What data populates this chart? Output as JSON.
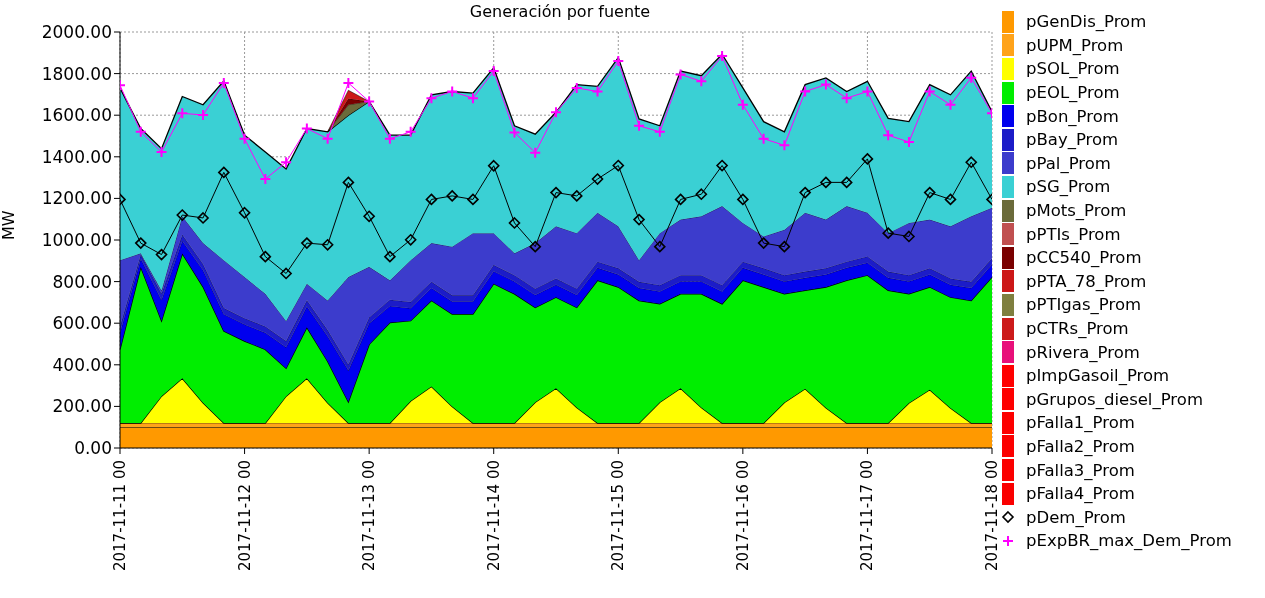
{
  "chart_data": {
    "type": "area",
    "title": "Generación por fuente",
    "ylabel": "MW",
    "stacked": true,
    "grid": true,
    "legend": "right",
    "x": [
      "2017-11-11T00:00",
      "2017-11-11T04:00",
      "2017-11-11T08:00",
      "2017-11-11T12:00",
      "2017-11-11T16:00",
      "2017-11-11T20:00",
      "2017-11-12T00:00",
      "2017-11-12T04:00",
      "2017-11-12T08:00",
      "2017-11-12T12:00",
      "2017-11-12T16:00",
      "2017-11-12T20:00",
      "2017-11-13T00:00",
      "2017-11-13T04:00",
      "2017-11-13T08:00",
      "2017-11-13T12:00",
      "2017-11-13T16:00",
      "2017-11-13T20:00",
      "2017-11-14T00:00",
      "2017-11-14T04:00",
      "2017-11-14T08:00",
      "2017-11-14T12:00",
      "2017-11-14T16:00",
      "2017-11-14T20:00",
      "2017-11-15T00:00",
      "2017-11-15T04:00",
      "2017-11-15T08:00",
      "2017-11-15T12:00",
      "2017-11-15T16:00",
      "2017-11-15T20:00",
      "2017-11-16T00:00",
      "2017-11-16T04:00",
      "2017-11-16T08:00",
      "2017-11-16T12:00",
      "2017-11-16T16:00",
      "2017-11-16T20:00",
      "2017-11-17T00:00",
      "2017-11-17T04:00",
      "2017-11-17T08:00",
      "2017-11-17T12:00",
      "2017-11-17T16:00",
      "2017-11-17T20:00",
      "2017-11-18T00:00"
    ],
    "xlim": [
      "2017-11-11T00:00",
      "2017-11-18T00:00"
    ],
    "xticks": [
      {
        "value": "2017-11-11T00:00",
        "label": "2017-11-11 00"
      },
      {
        "value": "2017-11-12T00:00",
        "label": "2017-11-12 00"
      },
      {
        "value": "2017-11-13T00:00",
        "label": "2017-11-13 00"
      },
      {
        "value": "2017-11-14T00:00",
        "label": "2017-11-14 00"
      },
      {
        "value": "2017-11-15T00:00",
        "label": "2017-11-15 00"
      },
      {
        "value": "2017-11-16T00:00",
        "label": "2017-11-16 00"
      },
      {
        "value": "2017-11-17T00:00",
        "label": "2017-11-17 00"
      },
      {
        "value": "2017-11-18T00:00",
        "label": "2017-11-18 00"
      }
    ],
    "ylim": [
      0,
      2000
    ],
    "yticks": [
      {
        "value": 0,
        "label": "0.00"
      },
      {
        "value": 200,
        "label": "200.00"
      },
      {
        "value": 400,
        "label": "400.00"
      },
      {
        "value": 600,
        "label": "600.00"
      },
      {
        "value": 800,
        "label": "800.00"
      },
      {
        "value": 1000,
        "label": "1000.00"
      },
      {
        "value": 1200,
        "label": "1200.00"
      },
      {
        "value": 1400,
        "label": "1400.00"
      },
      {
        "value": 1600,
        "label": "1600.00"
      },
      {
        "value": 1800,
        "label": "1800.00"
      },
      {
        "value": 2000,
        "label": "2000.00"
      }
    ],
    "series": [
      {
        "name": "pGenDis_Prom",
        "color": "#ff9900",
        "values": [
          100,
          100,
          100,
          100,
          100,
          100,
          100,
          100,
          100,
          100,
          100,
          100,
          100,
          100,
          100,
          100,
          100,
          100,
          100,
          100,
          100,
          100,
          100,
          100,
          100,
          100,
          100,
          100,
          100,
          100,
          100,
          100,
          100,
          100,
          100,
          100,
          100,
          100,
          100,
          100,
          100,
          100,
          100
        ]
      },
      {
        "name": "pUPM_Prom",
        "color": "#ffa31a",
        "values": [
          20,
          20,
          20,
          20,
          20,
          20,
          20,
          20,
          20,
          20,
          20,
          20,
          20,
          20,
          20,
          20,
          20,
          20,
          20,
          20,
          20,
          20,
          20,
          20,
          20,
          20,
          20,
          20,
          20,
          20,
          20,
          20,
          20,
          20,
          20,
          20,
          20,
          20,
          20,
          20,
          20,
          20,
          20
        ]
      },
      {
        "name": "pSOL_Prom",
        "color": "#ffff00",
        "values": [
          0,
          0,
          129,
          215,
          97,
          0,
          0,
          0,
          129,
          215,
          97,
          0,
          0,
          0,
          106,
          176,
          79,
          0,
          0,
          0,
          100,
          167,
          75,
          0,
          0,
          0,
          100,
          167,
          75,
          0,
          0,
          0,
          99,
          165,
          74,
          0,
          0,
          0,
          96,
          160,
          72,
          0,
          0
        ]
      },
      {
        "name": "pEOL_Prom",
        "color": "#00ee00",
        "values": [
          354,
          750,
          363,
          600,
          558,
          443,
          394,
          354,
          135,
          245,
          200,
          102,
          378,
          483,
          386,
          413,
          445,
          524,
          670,
          621,
          456,
          438,
          481,
          686,
          654,
          589,
          473,
          454,
          546,
          573,
          686,
          654,
          522,
          473,
          580,
          686,
          711,
          638,
          525,
          494,
          533,
          589,
          702
        ]
      },
      {
        "name": "pBon_Prom",
        "color": "#0000ee",
        "values": [
          80,
          40,
          100,
          60,
          80,
          80,
          80,
          80,
          100,
          100,
          120,
          150,
          100,
          80,
          60,
          60,
          60,
          60,
          60,
          60,
          60,
          60,
          60,
          60,
          60,
          60,
          60,
          60,
          60,
          60,
          60,
          60,
          60,
          60,
          60,
          60,
          60,
          60,
          60,
          60,
          60,
          60,
          60
        ]
      },
      {
        "name": "pBay_Prom",
        "color": "#1c1cc8",
        "values": [
          30,
          20,
          30,
          30,
          30,
          30,
          30,
          30,
          30,
          30,
          30,
          30,
          30,
          30,
          30,
          30,
          30,
          30,
          30,
          30,
          30,
          30,
          30,
          30,
          30,
          30,
          30,
          30,
          30,
          30,
          30,
          30,
          30,
          30,
          30,
          30,
          30,
          30,
          30,
          30,
          30,
          30,
          30
        ]
      },
      {
        "name": "pPal_Prom",
        "color": "#3c3ccc",
        "values": [
          319,
          6,
          15,
          89,
          100,
          230,
          198,
          157,
          97,
          80,
          142,
          420,
          243,
          93,
          201,
          186,
          234,
          299,
          153,
          105,
          219,
          251,
          267,
          235,
          202,
          104,
          250,
          267,
          283,
          380,
          186,
          153,
          218,
          283,
          234,
          267,
          210,
          185,
          251,
          234,
          251,
          315,
          243
        ]
      },
      {
        "name": "pSG_Prom",
        "color": "#3ad0d4",
        "values": [
          828,
          600,
          682,
          576,
          665,
          861,
          682,
          682,
          730,
          746,
          811,
          778,
          795,
          698,
          601,
          713,
          746,
          673,
          795,
          613,
          524,
          548,
          714,
          608,
          811,
          679,
          516,
          714,
          676,
          730,
          649,
          552,
          471,
          616,
          681,
          551,
          632,
          552,
          487,
          649,
          632,
          698,
          462
        ]
      },
      {
        "name": "pMots_Prom",
        "color": "#6b6b3a",
        "values": [
          null,
          null,
          null,
          null,
          null,
          null,
          null,
          null,
          null,
          null,
          0,
          50,
          0,
          null,
          null,
          null,
          null,
          null,
          null,
          null,
          null,
          null,
          null,
          null,
          null,
          null,
          null,
          null,
          null,
          null,
          null,
          null,
          null,
          null,
          null,
          null,
          null,
          null,
          null,
          null,
          null,
          null,
          null
        ]
      },
      {
        "name": "pPTIs_Prom",
        "color": "#c05050",
        "values": [
          null,
          null,
          null,
          null,
          null,
          null,
          null,
          null,
          null,
          null,
          null,
          null,
          null,
          null,
          null,
          null,
          null,
          null,
          null,
          null,
          null,
          null,
          null,
          null,
          null,
          null,
          null,
          null,
          null,
          null,
          null,
          null,
          null,
          null,
          null,
          null,
          null,
          null,
          null,
          null,
          null,
          null,
          null
        ]
      },
      {
        "name": "pCC540_Prom",
        "color": "#7a0000",
        "values": [
          null,
          null,
          null,
          null,
          null,
          null,
          null,
          null,
          null,
          null,
          0,
          30,
          0,
          null,
          null,
          null,
          null,
          null,
          null,
          null,
          null,
          null,
          null,
          null,
          null,
          null,
          null,
          null,
          null,
          null,
          null,
          null,
          null,
          null,
          null,
          null,
          null,
          null,
          null,
          null,
          null,
          null,
          null
        ]
      },
      {
        "name": "pPTA_78_Prom",
        "color": "#cc1818",
        "values": [
          null,
          null,
          null,
          null,
          null,
          null,
          null,
          null,
          null,
          null,
          0,
          40,
          0,
          null,
          null,
          null,
          null,
          null,
          null,
          null,
          null,
          null,
          null,
          null,
          null,
          null,
          null,
          null,
          null,
          null,
          null,
          null,
          null,
          null,
          null,
          null,
          null,
          null,
          null,
          null,
          null,
          null,
          null
        ]
      },
      {
        "name": "pPTIgas_Prom",
        "color": "#7f7f3f",
        "values": [
          null,
          null,
          null,
          null,
          null,
          null,
          null,
          null,
          null,
          null,
          null,
          null,
          null,
          null,
          null,
          null,
          null,
          null,
          null,
          null,
          null,
          null,
          null,
          null,
          null,
          null,
          null,
          null,
          null,
          null,
          null,
          null,
          null,
          null,
          null,
          null,
          null,
          null,
          null,
          null,
          null,
          null,
          null
        ]
      },
      {
        "name": "pCTRs_Prom",
        "color": "#cc1a1a",
        "values": [
          null,
          null,
          null,
          null,
          null,
          null,
          null,
          null,
          null,
          null,
          null,
          null,
          null,
          null,
          null,
          null,
          null,
          null,
          null,
          null,
          null,
          null,
          null,
          null,
          null,
          null,
          null,
          null,
          null,
          null,
          null,
          null,
          null,
          null,
          null,
          null,
          null,
          null,
          null,
          null,
          null,
          null,
          null
        ]
      },
      {
        "name": "pRivera_Prom",
        "color": "#e8107a",
        "values": [
          null,
          null,
          null,
          null,
          null,
          null,
          null,
          null,
          null,
          null,
          null,
          null,
          null,
          null,
          null,
          null,
          null,
          null,
          null,
          null,
          null,
          null,
          null,
          null,
          null,
          null,
          null,
          null,
          null,
          null,
          null,
          null,
          null,
          null,
          null,
          null,
          null,
          null,
          null,
          null,
          null,
          null,
          null
        ]
      },
      {
        "name": "pImpGasoil_Prom",
        "color": "#ff0000",
        "values": [
          null,
          null,
          null,
          null,
          null,
          null,
          null,
          null,
          null,
          null,
          null,
          null,
          null,
          null,
          null,
          null,
          null,
          null,
          null,
          null,
          null,
          null,
          null,
          null,
          null,
          null,
          null,
          null,
          null,
          null,
          null,
          null,
          null,
          null,
          null,
          null,
          null,
          null,
          null,
          null,
          null,
          null,
          null
        ]
      },
      {
        "name": "pGrupos_diesel_Prom",
        "color": "#fe0000",
        "values": [
          null,
          null,
          null,
          null,
          null,
          null,
          null,
          null,
          null,
          null,
          null,
          null,
          null,
          null,
          null,
          null,
          null,
          null,
          null,
          null,
          null,
          null,
          null,
          null,
          null,
          null,
          null,
          null,
          null,
          null,
          null,
          null,
          null,
          null,
          null,
          null,
          null,
          null,
          null,
          null,
          null,
          null,
          null
        ]
      },
      {
        "name": "pFalla1_Prom",
        "color": "#fd0000",
        "values": [
          null,
          null,
          null,
          null,
          null,
          null,
          null,
          null,
          null,
          null,
          null,
          null,
          null,
          null,
          null,
          null,
          null,
          null,
          null,
          null,
          null,
          null,
          null,
          null,
          null,
          null,
          null,
          null,
          null,
          null,
          null,
          null,
          null,
          null,
          null,
          null,
          null,
          null,
          null,
          null,
          null,
          null,
          null
        ]
      },
      {
        "name": "pFalla2_Prom",
        "color": "#fc0000",
        "values": [
          null,
          null,
          null,
          null,
          null,
          null,
          null,
          null,
          null,
          null,
          null,
          null,
          null,
          null,
          null,
          null,
          null,
          null,
          null,
          null,
          null,
          null,
          null,
          null,
          null,
          null,
          null,
          null,
          null,
          null,
          null,
          null,
          null,
          null,
          null,
          null,
          null,
          null,
          null,
          null,
          null,
          null,
          null
        ]
      },
      {
        "name": "pFalla3_Prom",
        "color": "#fb0000",
        "values": [
          null,
          null,
          null,
          null,
          null,
          null,
          null,
          null,
          null,
          null,
          null,
          null,
          null,
          null,
          null,
          null,
          null,
          null,
          null,
          null,
          null,
          null,
          null,
          null,
          null,
          null,
          null,
          null,
          null,
          null,
          null,
          null,
          null,
          null,
          null,
          null,
          null,
          null,
          null,
          null,
          null,
          null,
          null
        ]
      },
      {
        "name": "pFalla4_Prom",
        "color": "#fa0000",
        "values": [
          null,
          null,
          null,
          null,
          null,
          null,
          null,
          null,
          null,
          null,
          null,
          null,
          null,
          null,
          null,
          null,
          null,
          null,
          null,
          null,
          null,
          null,
          null,
          null,
          null,
          null,
          null,
          null,
          null,
          null,
          null,
          null,
          null,
          null,
          null,
          null,
          null,
          null,
          null,
          null,
          null,
          null,
          null
        ]
      },
      {
        "name": "pDem_Prom",
        "type": "line",
        "marker": "diamond",
        "color": "#000000",
        "values": [
          1195,
          985,
          930,
          1120,
          1106,
          1325,
          1131,
          920,
          839,
          985,
          977,
          1277,
          1114,
          920,
          1001,
          1195,
          1212,
          1195,
          1357,
          1082,
          968,
          1228,
          1212,
          1293,
          1358,
          1098,
          968,
          1195,
          1220,
          1358,
          1195,
          985,
          968,
          1228,
          1277,
          1277,
          1390,
          1033,
          1017,
          1228,
          1195,
          1374,
          1195
        ]
      },
      {
        "name": "pExpBR_max_Dem_Prom",
        "type": "line",
        "marker": "cross",
        "color": "#ff00ff",
        "values": [
          1744,
          1520,
          1423,
          1609,
          1601,
          1755,
          1487,
          1293,
          1374,
          1536,
          1487,
          1755,
          1666,
          1487,
          1520,
          1682,
          1714,
          1682,
          1812,
          1517,
          1420,
          1614,
          1731,
          1714,
          1861,
          1549,
          1520,
          1796,
          1763,
          1885,
          1650,
          1487,
          1455,
          1714,
          1747,
          1682,
          1714,
          1504,
          1471,
          1714,
          1650,
          1780,
          1609
        ]
      }
    ]
  }
}
